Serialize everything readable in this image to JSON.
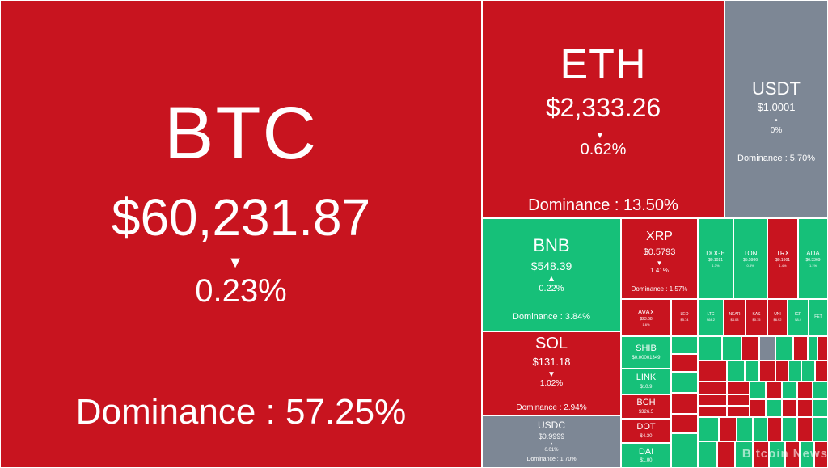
{
  "colors": {
    "down": "#c8141f",
    "up": "#16c079",
    "flat": "#7d8795"
  },
  "icons": {
    "change_indicator": "down-triangle-icon"
  },
  "tiles": {
    "btc": {
      "symbol": "BTC",
      "price": "$60,231.87",
      "change": "0.23%",
      "dominance": "Dominance : 57.25%"
    },
    "eth": {
      "symbol": "ETH",
      "price": "$2,333.26",
      "change": "0.62%",
      "dominance": "Dominance : 13.50%"
    },
    "usdt": {
      "symbol": "USDT",
      "price": "$1.0001",
      "change": "0%",
      "dominance": "Dominance : 5.70%"
    },
    "bnb": {
      "symbol": "BNB",
      "price": "$548.39",
      "change": "0.22%",
      "dominance": "Dominance : 3.84%"
    },
    "sol": {
      "symbol": "SOL",
      "price": "$131.18",
      "change": "1.02%",
      "dominance": "Dominance : 2.94%"
    },
    "usdc": {
      "symbol": "USDC",
      "price": "$0.9999",
      "change": "0.01%",
      "dominance": "Dominance : 1.70%"
    },
    "xrp": {
      "symbol": "XRP",
      "price": "$0.5793",
      "change": "1.41%",
      "dominance": "Dominance : 1.57%"
    },
    "doge": {
      "symbol": "DOGE",
      "price": "$0.1021",
      "change": "1.3%"
    },
    "ton": {
      "symbol": "TON",
      "price": "$5.5986",
      "change": "0.8%"
    },
    "trx": {
      "symbol": "TRX",
      "price": "$0.1601",
      "change": "1.4%"
    },
    "ada": {
      "symbol": "ADA",
      "price": "$0.3369",
      "change": "1.1%"
    },
    "avax": {
      "symbol": "AVAX",
      "price": "$23.68",
      "change": "1.6%"
    },
    "leo": {
      "symbol": "LEO",
      "price": "$5.74"
    },
    "ltc": {
      "symbol": "LTC",
      "price": "$64.2"
    },
    "near": {
      "symbol": "NEAR",
      "price": "$4.08"
    },
    "kas": {
      "symbol": "KAS",
      "price": "$0.15"
    },
    "uni": {
      "symbol": "UNI",
      "price": "$6.92"
    },
    "icp": {
      "symbol": "ICP",
      "price": "$8.4"
    },
    "fet": {
      "symbol": "FET"
    },
    "shib": {
      "symbol": "SHIB",
      "price": "$0.00001349"
    },
    "link": {
      "symbol": "LINK",
      "price": "$10.9"
    },
    "bch": {
      "symbol": "BCH",
      "price": "$326.5"
    },
    "dot": {
      "symbol": "DOT",
      "price": "$4.30"
    },
    "dai": {
      "symbol": "DAI",
      "price": "$1.00"
    }
  },
  "watermark": {
    "text": "Bitcoin News"
  }
}
